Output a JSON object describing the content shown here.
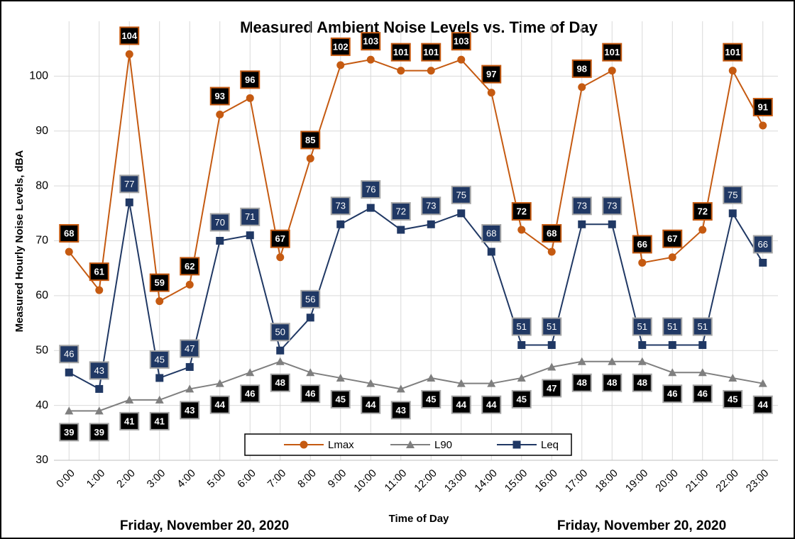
{
  "chart_data": {
    "type": "line",
    "title": "Measured Ambient Noise Levels vs. Time of Day",
    "x_label": "Time of Day",
    "y_label": "Measured Hourly Noise Levels, dBA",
    "notes": [
      "Friday, November 20, 2020",
      "Friday, November 20, 2020"
    ],
    "categories": [
      "0:00",
      "1:00",
      "2:00",
      "3:00",
      "4:00",
      "5:00",
      "6:00",
      "7:00",
      "8:00",
      "9:00",
      "10:00",
      "11:00",
      "12:00",
      "13:00",
      "14:00",
      "15:00",
      "16:00",
      "17:00",
      "18:00",
      "19:00",
      "20:00",
      "21:00",
      "22:00",
      "23:00"
    ],
    "series": [
      {
        "name": "Lmax",
        "color": "#c55a11",
        "marker": "circle",
        "values": [
          68,
          61,
          104,
          59,
          62,
          93,
          96,
          67,
          85,
          102,
          103,
          101,
          101,
          103,
          97,
          72,
          68,
          98,
          101,
          66,
          67,
          72,
          101,
          91
        ]
      },
      {
        "name": "L90",
        "color": "#7f7f7f",
        "marker": "triangle",
        "values": [
          39,
          39,
          41,
          41,
          43,
          44,
          46,
          48,
          46,
          45,
          44,
          43,
          45,
          44,
          44,
          45,
          47,
          48,
          48,
          48,
          46,
          46,
          45,
          44
        ]
      },
      {
        "name": "Leq",
        "color": "#203864",
        "marker": "square",
        "values": [
          46,
          43,
          77,
          45,
          47,
          70,
          71,
          50,
          56,
          73,
          76,
          72,
          73,
          75,
          68,
          51,
          51,
          73,
          73,
          51,
          51,
          51,
          75,
          66
        ]
      }
    ],
    "ylim": [
      30,
      110
    ],
    "yticks": [
      30,
      40,
      50,
      60,
      70,
      80,
      90,
      100
    ],
    "grid": true,
    "legend": "bottom"
  }
}
